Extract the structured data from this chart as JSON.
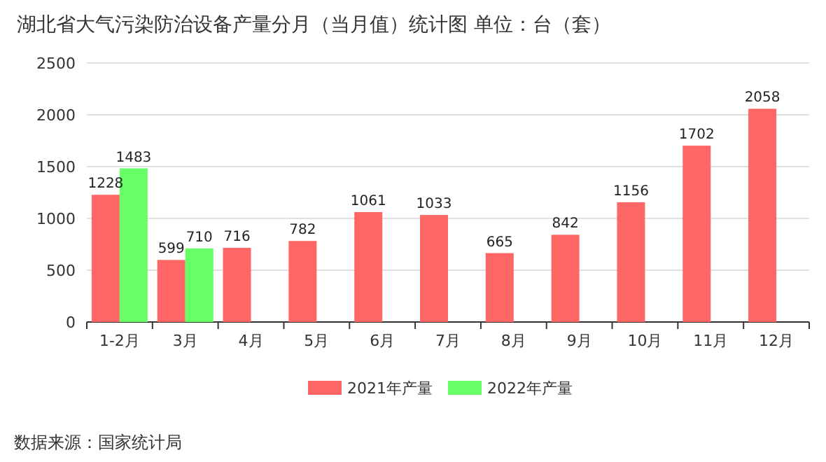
{
  "chart_data": {
    "type": "bar",
    "title": "湖北省大气污染防治设备产量分月（当月值）统计图  单位：台（套）",
    "categories": [
      "1-2月",
      "3月",
      "4月",
      "5月",
      "6月",
      "7月",
      "8月",
      "9月",
      "10月",
      "11月",
      "12月"
    ],
    "series": [
      {
        "name": "2021年产量",
        "color": "#ff6666",
        "values": [
          1228,
          599,
          716,
          782,
          1061,
          1033,
          665,
          842,
          1156,
          1702,
          2058
        ]
      },
      {
        "name": "2022年产量",
        "color": "#66ff66",
        "values": [
          1483,
          710,
          null,
          null,
          null,
          null,
          null,
          null,
          null,
          null,
          null
        ]
      }
    ],
    "ylim": [
      0,
      2500
    ],
    "yticks": [
      0,
      500,
      1000,
      1500,
      2000,
      2500
    ],
    "grid": "y",
    "legend": "bottom",
    "data_labels": true,
    "annotations": [
      "数据来源：国家统计局"
    ]
  }
}
